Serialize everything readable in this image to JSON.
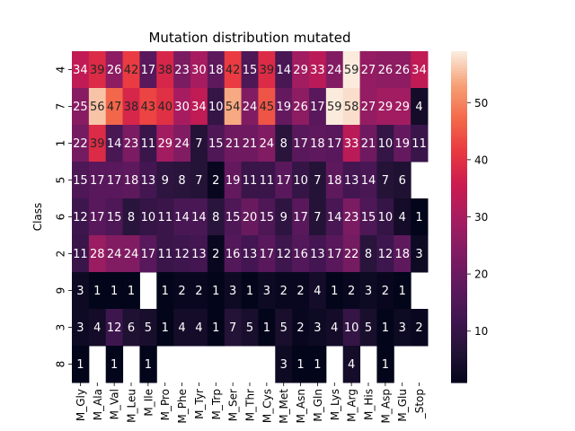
{
  "chart_data": {
    "type": "heatmap",
    "title": "Mutation distribution mutated",
    "ylabel": "Class",
    "xlabel": "",
    "columns": [
      "M_Gly",
      "M_Ala",
      "M_Val",
      "M_Leu",
      "M_Ile",
      "M_Pro",
      "M_Phe",
      "M_Tyr",
      "M_Trp",
      "M_Ser",
      "M_Thr",
      "M_Cys",
      "M_Met",
      "M_Asn",
      "M_Gln",
      "M_Lys",
      "M_Arg",
      "M_His",
      "M_Asp",
      "M_Glu",
      "M_Stop"
    ],
    "column_tick_labels": [
      "M_Gly",
      "M_Ala",
      "M_Val",
      "M_Leu",
      "M_Ile",
      "M_Pro",
      "M_Phe",
      "M_Tyr",
      "M_Trp",
      "M_Ser",
      "M_Thr",
      "M_Cys",
      "M_Met",
      "M_Asn",
      "M_Gln",
      "M_Lys",
      "M_Arg",
      "M_His",
      "M_Asp",
      "M_Glu",
      "_Stop"
    ],
    "rows": [
      "4",
      "7",
      "1",
      "5",
      "6",
      "2",
      "9",
      "3",
      "8"
    ],
    "values": [
      [
        34,
        39,
        26,
        42,
        17,
        38,
        23,
        30,
        18,
        42,
        15,
        39,
        14,
        29,
        33,
        24,
        59,
        27,
        26,
        26,
        34
      ],
      [
        25,
        56,
        47,
        38,
        43,
        40,
        30,
        34,
        10,
        54,
        24,
        45,
        19,
        26,
        17,
        59,
        58,
        27,
        29,
        29,
        4
      ],
      [
        22,
        39,
        14,
        23,
        11,
        29,
        24,
        7,
        15,
        21,
        21,
        24,
        8,
        17,
        18,
        17,
        33,
        21,
        10,
        19,
        11
      ],
      [
        15,
        17,
        17,
        18,
        13,
        9,
        8,
        7,
        2,
        19,
        11,
        11,
        17,
        10,
        7,
        18,
        13,
        14,
        7,
        6,
        null
      ],
      [
        12,
        17,
        15,
        8,
        10,
        11,
        14,
        14,
        8,
        15,
        20,
        15,
        9,
        17,
        7,
        14,
        23,
        15,
        10,
        4,
        1
      ],
      [
        11,
        28,
        24,
        24,
        17,
        11,
        12,
        13,
        2,
        16,
        13,
        17,
        12,
        16,
        13,
        17,
        22,
        8,
        12,
        18,
        3
      ],
      [
        3,
        1,
        1,
        1,
        null,
        1,
        2,
        2,
        1,
        3,
        1,
        3,
        2,
        2,
        4,
        1,
        2,
        3,
        2,
        1,
        null
      ],
      [
        3,
        4,
        12,
        6,
        5,
        1,
        4,
        4,
        1,
        7,
        5,
        1,
        5,
        2,
        3,
        4,
        10,
        5,
        1,
        3,
        2
      ],
      [
        1,
        null,
        1,
        null,
        1,
        null,
        null,
        null,
        null,
        null,
        null,
        null,
        3,
        1,
        1,
        null,
        4,
        null,
        1,
        null,
        null
      ]
    ],
    "vmin": 1,
    "vmax": 59,
    "colormap": "rocket",
    "colorbar_ticks": [
      10,
      20,
      30,
      40,
      50
    ]
  }
}
